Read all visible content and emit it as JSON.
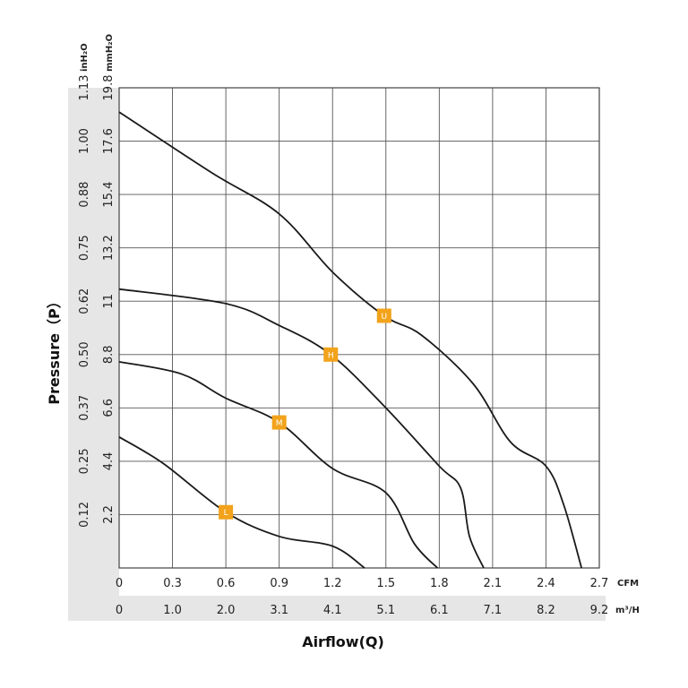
{
  "chart_data": {
    "type": "line",
    "xlabel": "Airflow(Q)",
    "ylabel": "Pressure（P）",
    "x_unit_primary": "CFM",
    "x_unit_secondary": "m³/H",
    "y_unit_primary": "mmH₂O",
    "y_unit_secondary": "inH₂O",
    "xlim": [
      0,
      2.7
    ],
    "ylim": [
      0,
      19.8
    ],
    "grid": true,
    "x_ticks_cfm": [
      "0",
      "0.3",
      "0.6",
      "0.9",
      "1.2",
      "1.5",
      "1.8",
      "2.1",
      "2.4",
      "2.7"
    ],
    "x_ticks_m3h": [
      "0",
      "1.0",
      "2.0",
      "3.1",
      "4.1",
      "5.1",
      "6.1",
      "7.1",
      "8.2",
      "9.2"
    ],
    "y_ticks_mmh2o": [
      "2.2",
      "4.4",
      "6.6",
      "8.8",
      "11",
      "13.2",
      "15.4",
      "17.6",
      "19.8"
    ],
    "y_ticks_inh2o": [
      "0.12",
      "0.25",
      "0.37",
      "0.50",
      "0.62",
      "0.75",
      "0.88",
      "1.00",
      "1.13"
    ],
    "series": [
      {
        "name": "U",
        "marker": {
          "x": 1.49,
          "y": 10.4
        },
        "x": [
          0,
          0.52,
          0.9,
          1.2,
          1.49,
          1.7,
          1.99,
          2.2,
          2.4,
          2.5,
          2.6
        ],
        "y": [
          18.8,
          16.3,
          14.6,
          12.2,
          10.4,
          9.6,
          7.6,
          5.2,
          4.2,
          2.6,
          0
        ]
      },
      {
        "name": "H",
        "marker": {
          "x": 1.19,
          "y": 8.8
        },
        "x": [
          0,
          0.6,
          0.9,
          1.19,
          1.5,
          1.8,
          1.92,
          1.97,
          2.05
        ],
        "y": [
          11.5,
          10.9,
          10.0,
          8.8,
          6.6,
          4.2,
          3.3,
          1.3,
          0
        ]
      },
      {
        "name": "M",
        "marker": {
          "x": 0.9,
          "y": 6.0
        },
        "x": [
          0,
          0.35,
          0.6,
          0.9,
          1.2,
          1.5,
          1.66,
          1.79
        ],
        "y": [
          8.5,
          8.0,
          7.0,
          6.0,
          4.1,
          3.1,
          1.0,
          0
        ]
      },
      {
        "name": "L",
        "marker": {
          "x": 0.6,
          "y": 2.3
        },
        "x": [
          0,
          0.25,
          0.6,
          0.9,
          1.2,
          1.38
        ],
        "y": [
          5.4,
          4.3,
          2.3,
          1.3,
          0.9,
          0
        ]
      }
    ],
    "colors": {
      "curve": "#1a1a1a",
      "grid": "#555555",
      "marker": "#f2a31b",
      "band": "#e6e6e6"
    }
  }
}
